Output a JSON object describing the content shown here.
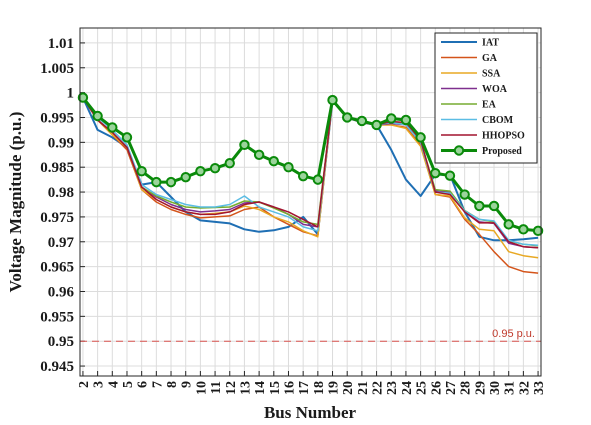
{
  "chart_data": {
    "type": "line",
    "xlabel": "Bus Number",
    "ylabel": "Voltage Magnitude (p.u.)",
    "x": [
      2,
      3,
      4,
      5,
      6,
      7,
      8,
      9,
      10,
      11,
      12,
      13,
      14,
      15,
      16,
      17,
      18,
      19,
      20,
      21,
      22,
      23,
      24,
      25,
      26,
      27,
      28,
      29,
      30,
      31,
      32,
      33
    ],
    "xlim": [
      1.8,
      33.2
    ],
    "ylim": [
      0.943,
      1.013
    ],
    "yticks": [
      0.945,
      0.95,
      0.955,
      0.96,
      0.965,
      0.97,
      0.975,
      0.98,
      0.985,
      0.99,
      0.995,
      1,
      1.005,
      1.01
    ],
    "ytick_labels": [
      "0.945",
      "0.95",
      "0.955",
      "0.96",
      "0.965",
      "0.97",
      "0.975",
      "0.98",
      "0.985",
      "0.99",
      "0.995",
      "1",
      "1.005",
      "1.01"
    ],
    "grid": true,
    "legend_position": "top-right",
    "reference_line": {
      "y": 0.95,
      "label": "0.95 p.u.",
      "color": "#d9534f"
    },
    "series": [
      {
        "name": "IAT",
        "color": "#1f6fb4",
        "width": 2,
        "marker": false,
        "values": [
          0.999,
          0.9925,
          0.991,
          0.989,
          0.9815,
          0.982,
          0.979,
          0.976,
          0.9743,
          0.974,
          0.9737,
          0.9725,
          0.972,
          0.9723,
          0.973,
          0.975,
          0.9715,
          0.9985,
          0.995,
          0.994,
          0.9935,
          0.9885,
          0.9825,
          0.9792,
          0.9835,
          0.9835,
          0.976,
          0.971,
          0.9703,
          0.9703,
          0.9705,
          0.9708
        ]
      },
      {
        "name": "GA",
        "color": "#d4541a",
        "width": 1.5,
        "marker": false,
        "values": [
          0.999,
          0.9945,
          0.9915,
          0.9885,
          0.9805,
          0.978,
          0.9765,
          0.9755,
          0.9748,
          0.975,
          0.9752,
          0.9765,
          0.977,
          0.975,
          0.9735,
          0.972,
          0.9712,
          0.9985,
          0.995,
          0.994,
          0.9935,
          0.9935,
          0.993,
          0.9895,
          0.9795,
          0.979,
          0.9745,
          0.9715,
          0.968,
          0.965,
          0.964,
          0.9637
        ]
      },
      {
        "name": "SSA",
        "color": "#e8a823",
        "width": 1.5,
        "marker": false,
        "values": [
          0.999,
          0.9945,
          0.9915,
          0.989,
          0.9805,
          0.9785,
          0.977,
          0.976,
          0.9755,
          0.9757,
          0.976,
          0.9772,
          0.9765,
          0.975,
          0.974,
          0.9722,
          0.971,
          0.9985,
          0.995,
          0.994,
          0.9935,
          0.9935,
          0.9928,
          0.9892,
          0.9795,
          0.9792,
          0.9748,
          0.9725,
          0.9722,
          0.968,
          0.9672,
          0.9668
        ]
      },
      {
        "name": "WOA",
        "color": "#7e2f8e",
        "width": 1.5,
        "marker": false,
        "values": [
          0.999,
          0.9945,
          0.992,
          0.989,
          0.981,
          0.979,
          0.9775,
          0.9765,
          0.976,
          0.9762,
          0.9765,
          0.9778,
          0.978,
          0.977,
          0.9755,
          0.9735,
          0.973,
          0.9985,
          0.995,
          0.994,
          0.9935,
          0.9938,
          0.9935,
          0.99,
          0.9802,
          0.98,
          0.976,
          0.974,
          0.9737,
          0.9697,
          0.969,
          0.9688
        ]
      },
      {
        "name": "EA",
        "color": "#77ac30",
        "width": 1.5,
        "marker": false,
        "values": [
          0.999,
          0.9945,
          0.992,
          0.989,
          0.981,
          0.9792,
          0.978,
          0.977,
          0.9768,
          0.9769,
          0.977,
          0.9782,
          0.978,
          0.9768,
          0.9755,
          0.974,
          0.9735,
          0.9985,
          0.995,
          0.994,
          0.9935,
          0.994,
          0.9937,
          0.9903,
          0.9805,
          0.9802,
          0.9763,
          0.9745,
          0.974,
          0.9702,
          0.9695,
          0.9692
        ]
      },
      {
        "name": "CBOM",
        "color": "#5bbde4",
        "width": 1.5,
        "marker": false,
        "values": [
          0.999,
          0.995,
          0.9925,
          0.9895,
          0.9815,
          0.9795,
          0.9785,
          0.9775,
          0.977,
          0.977,
          0.9775,
          0.9792,
          0.977,
          0.976,
          0.975,
          0.973,
          0.9722,
          0.9985,
          0.995,
          0.994,
          0.9935,
          0.994,
          0.9935,
          0.99,
          0.98,
          0.9798,
          0.9762,
          0.9745,
          0.9742,
          0.9703,
          0.9695,
          0.9693
        ]
      },
      {
        "name": "HHOPSO",
        "color": "#a2142f",
        "width": 1.5,
        "marker": false,
        "values": [
          0.999,
          0.9945,
          0.992,
          0.989,
          0.981,
          0.9785,
          0.977,
          0.976,
          0.9755,
          0.9755,
          0.976,
          0.9775,
          0.978,
          0.977,
          0.976,
          0.9745,
          0.973,
          0.9985,
          0.995,
          0.994,
          0.9935,
          0.9942,
          0.994,
          0.9905,
          0.98,
          0.9795,
          0.976,
          0.9738,
          0.9738,
          0.97,
          0.969,
          0.9688
        ]
      },
      {
        "name": "Proposed",
        "color": "#0a8a0a",
        "width": 3,
        "marker": true,
        "values": [
          0.999,
          0.9953,
          0.993,
          0.991,
          0.9842,
          0.982,
          0.982,
          0.983,
          0.9842,
          0.9848,
          0.9858,
          0.9895,
          0.9875,
          0.9862,
          0.985,
          0.9832,
          0.9825,
          0.9985,
          0.995,
          0.9943,
          0.9935,
          0.9948,
          0.9945,
          0.991,
          0.9838,
          0.9833,
          0.9795,
          0.9772,
          0.9772,
          0.9735,
          0.9725,
          0.9722
        ]
      }
    ]
  }
}
